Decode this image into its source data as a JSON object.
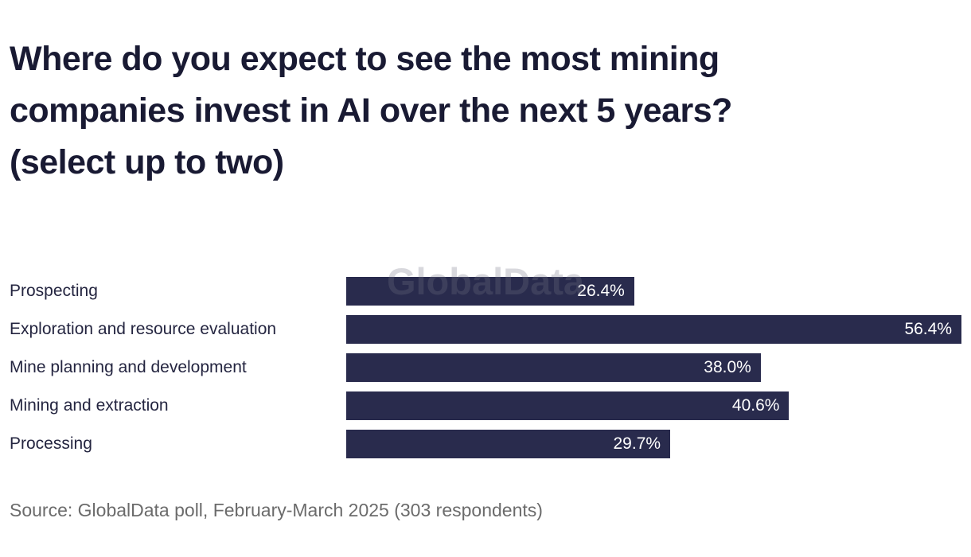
{
  "title_lines": [
    "Where do you expect to see the most mining",
    "companies invest in AI over the next 5 years?",
    "(select up to two)"
  ],
  "watermark": "GlobalData",
  "source": "Source: GlobalData poll, February-March 2025 (303 respondents)",
  "chart_data": {
    "type": "bar",
    "orientation": "horizontal",
    "title": "Where do you expect to see the most mining companies invest in AI over the next 5 years? (select up to two)",
    "categories": [
      "Prospecting",
      "Exploration and resource evaluation",
      "Mine planning and development",
      "Mining and extraction",
      "Processing"
    ],
    "values": [
      26.4,
      56.4,
      38.0,
      40.6,
      29.7
    ],
    "labels": [
      "26.4%",
      "56.4%",
      "38.0%",
      "40.6%",
      "29.7%"
    ],
    "xlabel": "",
    "ylabel": "",
    "xlim": [
      0,
      56.4
    ],
    "grid": false,
    "legend": false,
    "bar_color": "#292b4d",
    "value_label_color": "#ffffff"
  }
}
